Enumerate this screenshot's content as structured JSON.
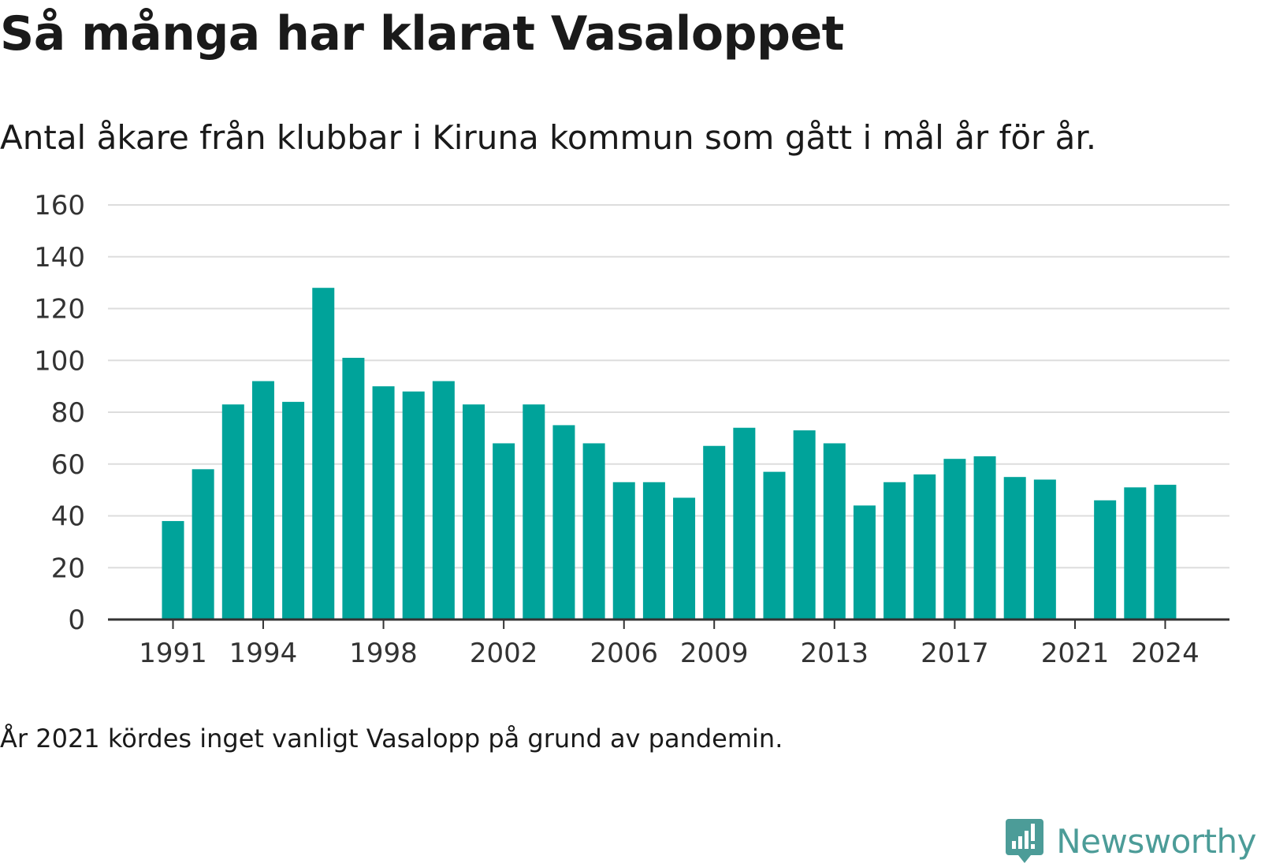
{
  "title": "Så många har klarat Vasaloppet",
  "subtitle": "Antal åkare från klubbar i Kiruna kommun som gått i mål år för år.",
  "footnote": "År 2021 kördes inget vanligt Vasalopp på grund av pandemin.",
  "brand": {
    "name": "Newsworthy",
    "icon": "newsworthy-logo-icon",
    "color": "#4c9c98"
  },
  "chart_data": {
    "type": "bar",
    "categories": [
      "1991",
      "1992",
      "1993",
      "1994",
      "1995",
      "1996",
      "1997",
      "1998",
      "1999",
      "2000",
      "2001",
      "2002",
      "2003",
      "2004",
      "2005",
      "2006",
      "2007",
      "2008",
      "2009",
      "2010",
      "2011",
      "2012",
      "2013",
      "2014",
      "2015",
      "2016",
      "2017",
      "2018",
      "2019",
      "2020",
      "2021",
      "2022",
      "2023",
      "2024"
    ],
    "values": [
      38,
      58,
      83,
      92,
      84,
      128,
      101,
      90,
      88,
      92,
      83,
      68,
      83,
      75,
      68,
      53,
      53,
      47,
      67,
      74,
      57,
      73,
      68,
      44,
      53,
      56,
      62,
      63,
      55,
      54,
      0,
      46,
      51,
      52
    ],
    "xticks": [
      "1991",
      "1994",
      "1998",
      "2002",
      "2006",
      "2009",
      "2013",
      "2017",
      "2021",
      "2024"
    ],
    "yticks": [
      0,
      20,
      40,
      60,
      80,
      100,
      120,
      140,
      160
    ],
    "ylim": [
      0,
      160
    ],
    "grid": true,
    "bar_color": "#00a39a",
    "xlabel": "",
    "ylabel": ""
  }
}
